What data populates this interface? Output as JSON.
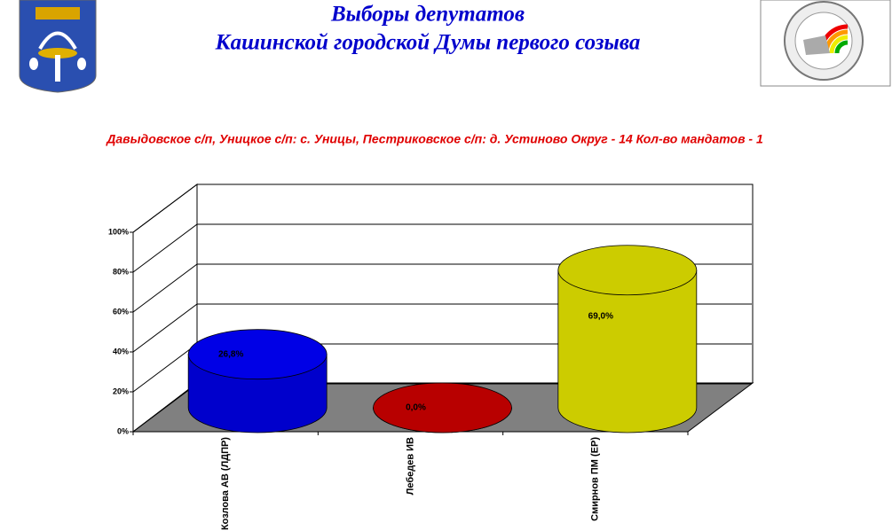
{
  "chart_data": {
    "type": "cylinder3d",
    "title": [
      "Выборы депутатов",
      "Кашинской городской Думы первого созыва"
    ],
    "subtitle": "Давыдовское с/п, Уницкое с/п: с. Уницы, Пестриковское с/п: д. Устиново    Округ - 14    Кол-во мандатов - 1",
    "categories": [
      "Козлова АВ (ЛДПР)",
      "Лебедев ИВ",
      "Смирнов ПМ (ЕР)"
    ],
    "values": [
      26.8,
      0.0,
      69.0
    ],
    "value_labels": [
      "26,8%",
      "0,0%",
      "69,0%"
    ],
    "colors": [
      "#0000ff",
      "#cc0000",
      "#ffff00"
    ],
    "ylim": [
      0,
      100
    ],
    "yticks": [
      {
        "value": 0,
        "label": "0%"
      },
      {
        "value": 20,
        "label": "20%"
      },
      {
        "value": 40,
        "label": "40%"
      },
      {
        "value": 60,
        "label": "60%"
      },
      {
        "value": 80,
        "label": "80%"
      },
      {
        "value": 100,
        "label": "100%"
      }
    ],
    "grid": true
  }
}
